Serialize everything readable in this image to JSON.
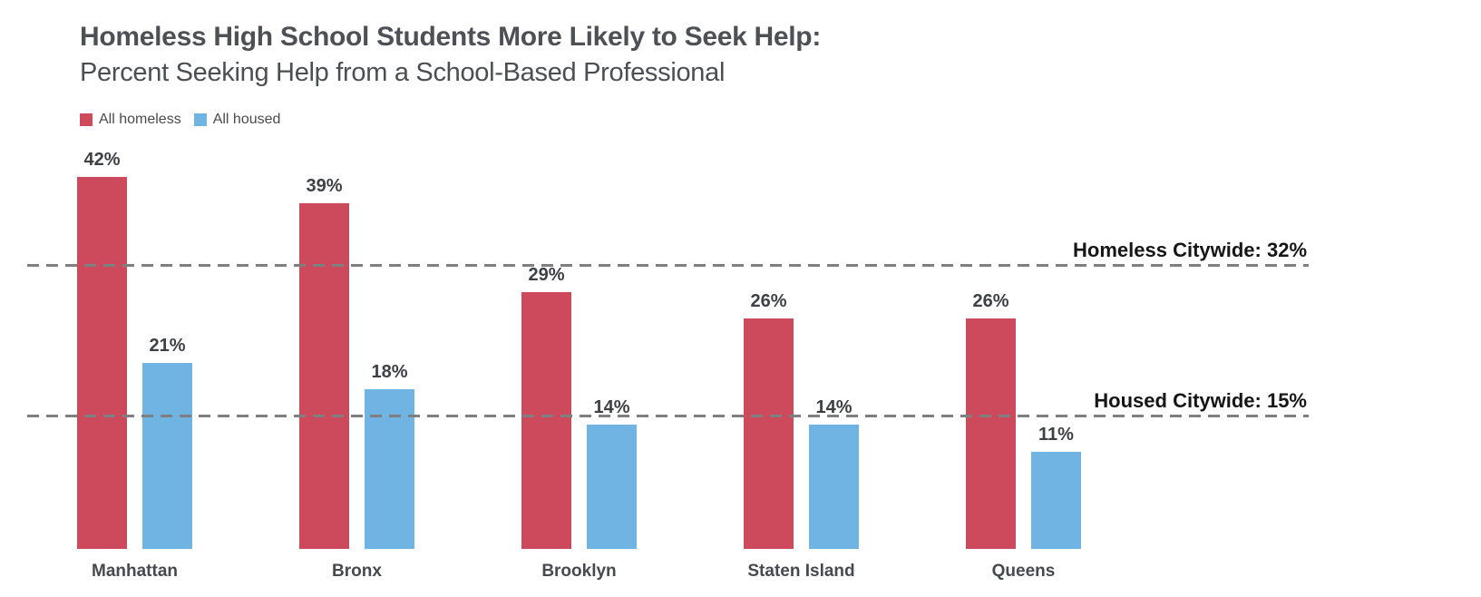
{
  "title": "Homeless High School Students More Likely to Seek Help:",
  "subtitle": "Percent Seeking Help from a School-Based Professional",
  "legend": [
    {
      "label": "All homeless",
      "color": "#cd4a5c"
    },
    {
      "label": "All housed",
      "color": "#6fb4e3"
    }
  ],
  "chart_data": {
    "type": "bar",
    "title": "Homeless High School Students More Likely to Seek Help:",
    "subtitle": "Percent Seeking Help from a School-Based Professional",
    "categories": [
      "Manhattan",
      "Bronx",
      "Brooklyn",
      "Staten Island",
      "Queens"
    ],
    "series": [
      {
        "name": "All homeless",
        "color": "#cd4a5c",
        "values": [
          42,
          39,
          29,
          26,
          26
        ]
      },
      {
        "name": "All housed",
        "color": "#6fb4e3",
        "values": [
          21,
          18,
          14,
          14,
          11
        ]
      }
    ],
    "value_suffix": "%",
    "data_labels": true,
    "reference_lines": [
      {
        "label": "Homeless Citywide: 32%",
        "value": 32
      },
      {
        "label": "Housed Citywide: 15%",
        "value": 15
      }
    ],
    "ylim": [
      0,
      47
    ],
    "grid": false,
    "axis_lines": false,
    "legend_position": "top-left",
    "colors": {
      "dashed_line": "#7f7f7f",
      "label_text": "#3d4045",
      "title_text": "#4d5156"
    }
  }
}
